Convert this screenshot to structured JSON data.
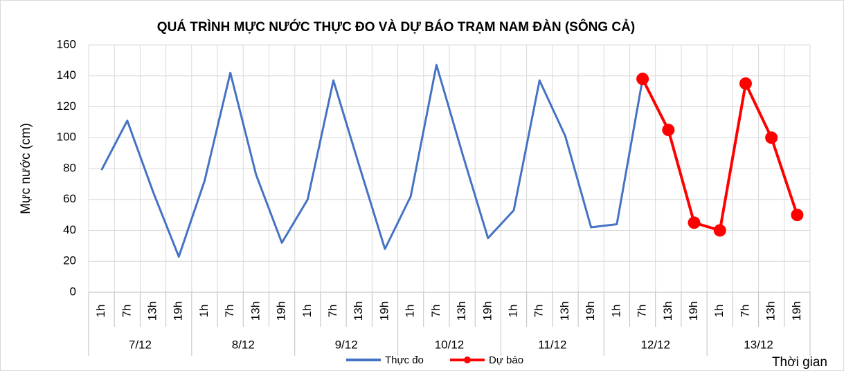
{
  "chart_data": {
    "type": "line",
    "title": "QUÁ TRÌNH MỰC NƯỚC THỰC ĐO VÀ DỰ BÁO TRẠM  NAM ĐÀN (SÔNG CẢ)",
    "y_label": "Mực nước (cm)",
    "x_label": "Thời gian",
    "categories": [
      "1h",
      "7h",
      "13h",
      "19h",
      "1h",
      "7h",
      "13h",
      "19h",
      "1h",
      "7h",
      "13h",
      "19h",
      "1h",
      "7h",
      "13h",
      "19h",
      "1h",
      "7h",
      "13h",
      "19h",
      "1h",
      "7h",
      "13h",
      "19h",
      "1h",
      "7h",
      "13h",
      "19h"
    ],
    "groups": [
      "7/12",
      "8/12",
      "9/12",
      "10/12",
      "11/12",
      "12/12",
      "13/12"
    ],
    "series": [
      {
        "name": "Thực đo",
        "color": "#4472c4",
        "marker": false,
        "values": [
          79,
          111,
          65,
          23,
          72,
          142,
          76,
          32,
          60,
          137,
          82,
          28,
          62,
          147,
          90,
          35,
          53,
          137,
          101,
          42,
          44,
          138,
          null,
          null,
          null,
          null,
          null,
          null
        ]
      },
      {
        "name": "Dự báo",
        "color": "#ff0000",
        "marker": true,
        "values": [
          null,
          null,
          null,
          null,
          null,
          null,
          null,
          null,
          null,
          null,
          null,
          null,
          null,
          null,
          null,
          null,
          null,
          null,
          null,
          null,
          null,
          138,
          105,
          45,
          40,
          135,
          100,
          50
        ]
      }
    ],
    "ylim": [
      0,
      160
    ],
    "yticks": [
      0,
      20,
      40,
      60,
      80,
      100,
      120,
      140,
      160
    ],
    "grid": true,
    "legend": "bottom"
  }
}
